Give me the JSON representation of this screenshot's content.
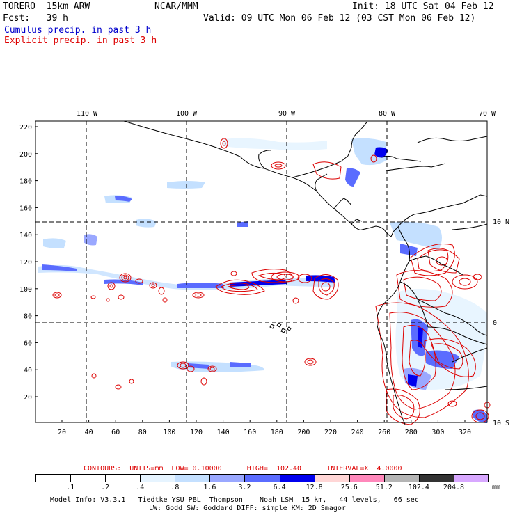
{
  "header": {
    "model": "TORERO  15km ARW",
    "org": "NCAR/MMM",
    "init": "Init: 18 UTC Sat 04 Feb 12",
    "fcst": "Fcst:   39 h",
    "valid": "Valid: 09 UTC Mon 06 Feb 12 (03 CST Mon 06 Feb 12)",
    "cumulus_label": "Cumulus precip. in past 3 h",
    "explicit_label": "Explicit precip. in past 3 h",
    "cumulus_color": "#0000cc",
    "explicit_color": "#dd0000"
  },
  "map": {
    "lon_labels": [
      "110 W",
      "100 W",
      "90 W",
      "80 W",
      "70 W"
    ],
    "lat_labels": [
      "10 N",
      "0",
      "10 S"
    ],
    "x_ticks": [
      "20",
      "40",
      "60",
      "80",
      "100",
      "120",
      "140",
      "160",
      "180",
      "200",
      "220",
      "240",
      "260",
      "280",
      "300",
      "320"
    ],
    "y_ticks": [
      "220",
      "200",
      "180",
      "160",
      "140",
      "120",
      "100",
      "80",
      "60",
      "40",
      "20"
    ]
  },
  "contours_line": {
    "label": "CONTOURS:  UNITS=mm  LOW= 0.10000      HIGH=  102.40      INTERVAL=X  4.0000"
  },
  "colorbar": {
    "levels": [
      ".1",
      ".2",
      ".4",
      ".8",
      "1.6",
      "3.2",
      "6.4",
      "12.8",
      "25.6",
      "51.2",
      "102.4",
      "204.8"
    ],
    "colors": [
      "#ffffff",
      "#ffffff",
      "#ffffff",
      "#e6f4ff",
      "#c4e0ff",
      "#9aa8ff",
      "#5a6cff",
      "#0000ee",
      "#ffd6d6",
      "#ff88bb",
      "#b4b4b4",
      "#333333",
      "#d8a8ff"
    ],
    "unit": "mm"
  },
  "footer": {
    "line1": "Model Info: V3.3.1   Tiedtke YSU PBL  Thompson    Noah LSM  15 km,   44 levels,   66 sec",
    "line2": "LW: Godd SW: Goddard DIFF: simple KM: 2D Smagor"
  }
}
